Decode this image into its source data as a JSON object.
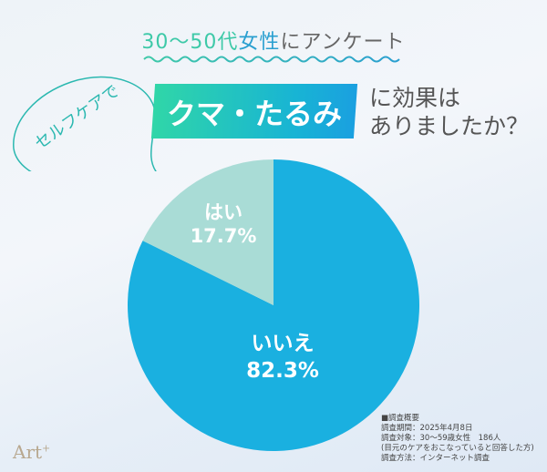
{
  "header": {
    "subtitle_part1": "30〜50代",
    "subtitle_part2": "女性",
    "subtitle_part3": "にアンケート",
    "bubble": "セルフケアで",
    "banner": "クマ・たるみ",
    "question_line1": "に効果は",
    "question_line2": "ありましたか？"
  },
  "chart_data": {
    "type": "pie",
    "title": "セルフケアでクマ・たるみに効果はありましたか？",
    "slices": [
      {
        "label": "いいえ",
        "value": 82.3,
        "value_label": "82.3%",
        "color": "#1ab0e0"
      },
      {
        "label": "はい",
        "value": 17.7,
        "value_label": "17.7%",
        "color": "#a9dcd6"
      }
    ]
  },
  "notes": {
    "heading": "■調査概要",
    "period": "調査期間：2025年4月8日",
    "target": "調査対象：30〜59歳女性　186人",
    "target_note": "(目元のケアをおこなっていると回答した方)",
    "method": "調査方法：インターネット調査"
  },
  "logo": {
    "text": "Art",
    "sup": "+"
  }
}
